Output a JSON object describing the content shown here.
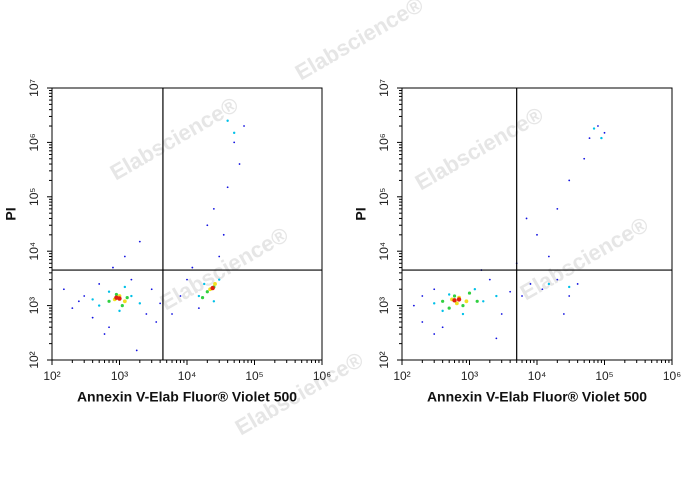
{
  "watermarks": [
    "Elabscience®",
    "Elabscience®",
    "Elabscience®",
    "Elabscience®",
    "Elabscience®",
    "Elabscience®"
  ],
  "chart_data": [
    {
      "type": "scatter",
      "xlabel": "Annexin V-Elab Fluor® Violet 500",
      "ylabel": "PI",
      "log_x": true,
      "log_y": true,
      "xlim": [
        100,
        1000000
      ],
      "ylim": [
        100,
        10000000
      ],
      "xticks": [
        {
          "value": 100,
          "label": "10²"
        },
        {
          "value": 1000,
          "label": "10³"
        },
        {
          "value": 10000,
          "label": "10⁴"
        },
        {
          "value": 100000,
          "label": "10⁵"
        },
        {
          "value": 1000000,
          "label": "10⁶"
        }
      ],
      "yticks": [
        {
          "value": 100,
          "label": "10²"
        },
        {
          "value": 1000,
          "label": "10³"
        },
        {
          "value": 10000,
          "label": "10⁴"
        },
        {
          "value": 100000,
          "label": "10⁵"
        },
        {
          "value": 1000000,
          "label": "10⁶"
        },
        {
          "value": 10000000,
          "label": "10⁷"
        }
      ],
      "gate": {
        "x": 4400,
        "y": 4500
      },
      "points": [
        {
          "color": "#1010e0",
          "x": [
            200,
            300,
            400,
            500,
            700,
            1500,
            2500,
            3000,
            4000,
            250,
            800,
            1200,
            2000,
            600,
            3500,
            8000,
            10000,
            15000,
            30000,
            20000,
            40000,
            25000,
            60000,
            50000,
            70000,
            35000,
            1800,
            150,
            6000,
            12000
          ],
          "y": [
            900,
            1500,
            600,
            2500,
            400,
            3000,
            700,
            2000,
            1100,
            1200,
            5000,
            8000,
            15000,
            300,
            500,
            1500,
            3000,
            900,
            8000,
            30000,
            150000,
            60000,
            400000,
            1000000,
            2000000,
            20000,
            150,
            2000,
            700,
            5000
          ]
        },
        {
          "color": "#00c0e8",
          "x": [
            500,
            700,
            1000,
            1500,
            2000,
            400,
            1200,
            15000,
            18000,
            25000,
            30000,
            50000,
            40000
          ],
          "y": [
            1000,
            1800,
            800,
            1500,
            1100,
            1300,
            2200,
            1500,
            2500,
            1200,
            3000,
            1500000,
            2500000
          ]
        },
        {
          "color": "#30d040",
          "x": [
            700,
            900,
            1100,
            1300,
            20000,
            25000,
            17000
          ],
          "y": [
            1200,
            1600,
            1000,
            1400,
            1800,
            2200,
            1400
          ]
        },
        {
          "color": "#f0e020",
          "x": [
            850,
            1000,
            1200,
            22000,
            26000
          ],
          "y": [
            1300,
            1500,
            1200,
            2000,
            2500
          ]
        },
        {
          "color": "#e02010",
          "x": [
            1000,
            900,
            24000
          ],
          "y": [
            1350,
            1400,
            2100
          ]
        }
      ]
    },
    {
      "type": "scatter",
      "xlabel": "Annexin V-Elab Fluor® Violet 500",
      "ylabel": "PI",
      "log_x": true,
      "log_y": true,
      "xlim": [
        100,
        1000000
      ],
      "ylim": [
        100,
        10000000
      ],
      "xticks": [
        {
          "value": 100,
          "label": "10²"
        },
        {
          "value": 1000,
          "label": "10³"
        },
        {
          "value": 10000,
          "label": "10⁴"
        },
        {
          "value": 100000,
          "label": "10⁵"
        },
        {
          "value": 1000000,
          "label": "10⁶"
        }
      ],
      "yticks": [
        {
          "value": 100,
          "label": "10²"
        },
        {
          "value": 1000,
          "label": "10³"
        },
        {
          "value": 10000,
          "label": "10⁴"
        },
        {
          "value": 100000,
          "label": "10⁵"
        },
        {
          "value": 1000000,
          "label": "10⁶"
        },
        {
          "value": 10000000,
          "label": "10⁷"
        }
      ],
      "gate": {
        "x": 5000,
        "y": 4500
      },
      "points": [
        {
          "color": "#1010e0",
          "x": [
            150,
            200,
            300,
            400,
            2000,
            3000,
            4000,
            6000,
            8000,
            12000,
            20000,
            30000,
            40000,
            25000,
            300,
            1500,
            5000,
            10000,
            20000,
            30000,
            50000,
            60000,
            80000,
            100000,
            15000,
            7000,
            200,
            2500
          ],
          "y": [
            1000,
            500,
            2000,
            400,
            3000,
            700,
            1800,
            1500,
            2500,
            2000,
            3000,
            1500,
            2500,
            700,
            300,
            4500,
            6000,
            20000,
            60000,
            200000,
            500000,
            1200000,
            2000000,
            1500000,
            8000,
            40000,
            1500,
            250
          ]
        },
        {
          "color": "#00c0e8",
          "x": [
            300,
            500,
            800,
            1200,
            1600,
            2500,
            400,
            15000,
            30000,
            70000,
            90000
          ],
          "y": [
            1100,
            1600,
            700,
            2000,
            1200,
            1500,
            800,
            2500,
            2200,
            1800000,
            1200000
          ]
        },
        {
          "color": "#30d040",
          "x": [
            400,
            600,
            800,
            1000,
            1300,
            500
          ],
          "y": [
            1200,
            1500,
            1000,
            1700,
            1200,
            900
          ]
        },
        {
          "color": "#f0e020",
          "x": [
            550,
            700,
            900,
            650
          ],
          "y": [
            1300,
            1400,
            1200,
            1100
          ]
        },
        {
          "color": "#e02010",
          "x": [
            700,
            600
          ],
          "y": [
            1300,
            1250
          ]
        }
      ]
    }
  ]
}
